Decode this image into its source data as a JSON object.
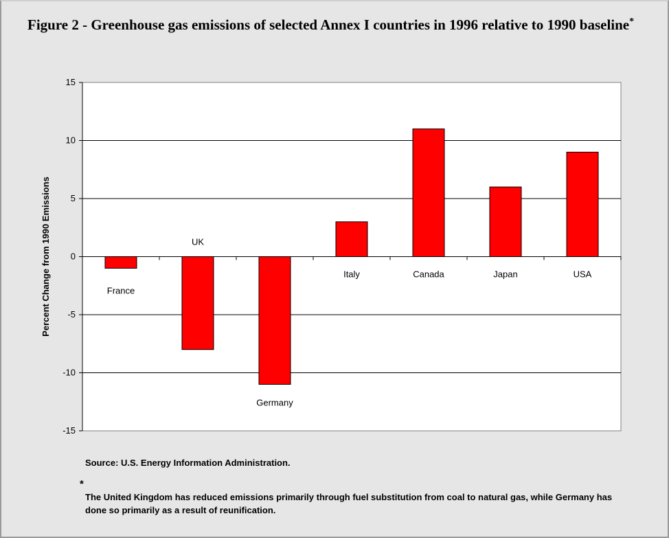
{
  "figure": {
    "title": "Figure 2 - Greenhouse gas emissions of selected Annex I countries in 1996 relative to 1990 baseline",
    "title_marker": "*",
    "source": "Source: U.S. Energy Information Administration.",
    "footnote_marker": "*",
    "footnote": "The United Kingdom has reduced emissions primarily through fuel substitution from coal to natural gas, while Germany has done so primarily as a result of reunification."
  },
  "chart_data": {
    "type": "bar",
    "title": "Figure 2 - Greenhouse gas emissions of selected Annex I countries in 1996 relative to 1990 baseline",
    "xlabel": "",
    "ylabel": "Percent Change from 1990 Emissions",
    "categories": [
      "France",
      "UK",
      "Germany",
      "Italy",
      "Canada",
      "Japan",
      "USA"
    ],
    "values": [
      -1,
      -8,
      -11,
      3,
      11,
      6,
      9
    ],
    "ylim": [
      -15,
      15
    ],
    "yticks": [
      -15,
      -10,
      -5,
      0,
      5,
      10,
      15
    ],
    "grid": true,
    "legend": "none",
    "bar_color": "#ff0000",
    "plot_background": "#ffffff"
  }
}
